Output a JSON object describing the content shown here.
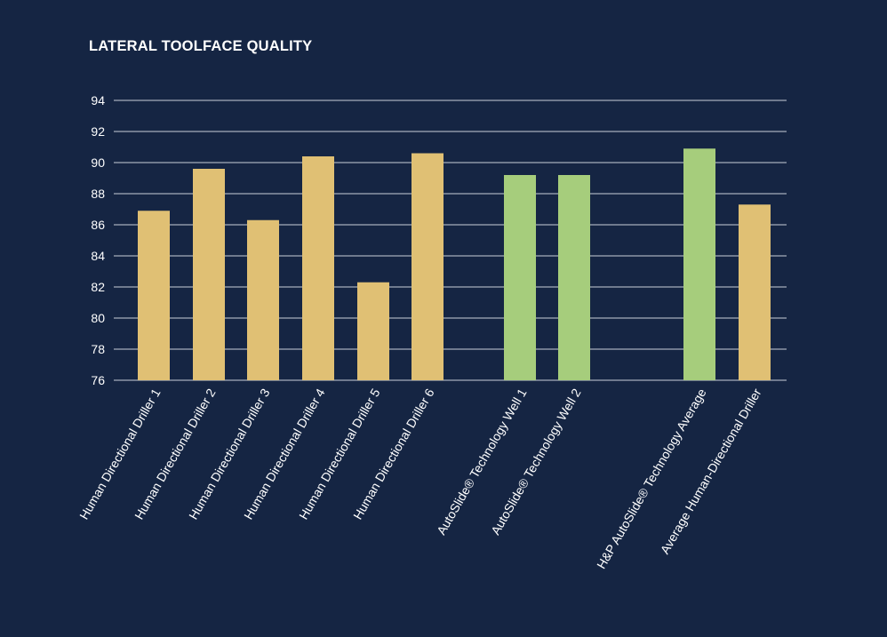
{
  "colors": {
    "background": "#152543",
    "human": "#e0c074",
    "autoslide": "#a6cd7c",
    "grid": "#c9cfd8",
    "text": "#ffffff"
  },
  "chart_data": {
    "type": "bar",
    "title": "LATERAL TOOLFACE QUALITY",
    "xlabel": "",
    "ylabel": "",
    "ylim": [
      76,
      94
    ],
    "yticks": [
      94,
      92,
      90,
      88,
      86,
      84,
      82,
      80,
      78,
      76
    ],
    "grid": true,
    "categories": [
      "Human Directional Driller 1",
      "Human Directional Driller 2",
      "Human Directional Driller 3",
      "Human Directional Driller 4",
      "Human Directional Driller 5",
      "Human Directional Driller 6",
      "AutoSlide® Technology Well 1",
      "AutoSlide® Technology Well 2",
      "H&P AutoSlide® Technology Average",
      "Average Human-Directional Driller"
    ],
    "values": [
      86.9,
      89.6,
      86.3,
      90.4,
      82.3,
      90.6,
      89.2,
      89.2,
      90.9,
      87.3
    ],
    "groups": [
      "human",
      "human",
      "human",
      "human",
      "human",
      "human",
      "autoslide",
      "autoslide",
      "autoslide",
      "human"
    ]
  }
}
